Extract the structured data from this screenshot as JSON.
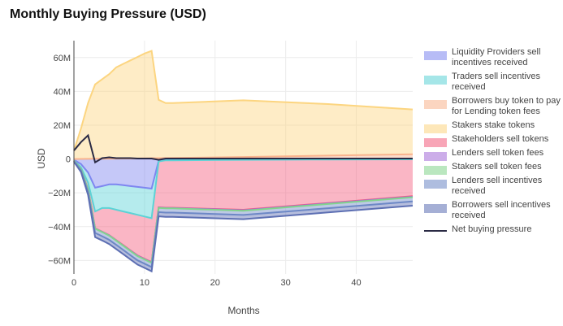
{
  "chart_data": {
    "type": "area",
    "title": "Monthly Buying Pressure (USD)",
    "xlabel": "Months",
    "ylabel": "USD",
    "xlim": [
      0,
      48
    ],
    "ylim": [
      -68000000,
      70000000
    ],
    "x_ticks": [
      0,
      10,
      20,
      30,
      40
    ],
    "y_ticks": [
      60000000,
      40000000,
      20000000,
      0,
      -20000000,
      -40000000,
      -60000000
    ],
    "y_tick_labels": [
      "60M",
      "40M",
      "20M",
      "0",
      "−20M",
      "−40M",
      "−60M"
    ],
    "x": [
      0,
      1,
      2,
      3,
      4,
      5,
      6,
      7,
      8,
      9,
      10,
      11,
      12,
      13,
      14,
      24,
      36,
      48
    ],
    "series": [
      {
        "name": "Liquidity Providers sell incentives received",
        "color": "#7e86f0",
        "stack": "neg",
        "values": [
          -0.5,
          -3,
          -8,
          -17,
          -16,
          -15,
          -15,
          -15.5,
          -16,
          -16.5,
          -17,
          -17.5,
          -1,
          -0.5,
          -0.5,
          -0.3,
          -0.2,
          -0.1
        ]
      },
      {
        "name": "Traders sell incentives received",
        "color": "#5cd3d6",
        "stack": "neg",
        "values": [
          -0.3,
          -2,
          -6,
          -14,
          -13,
          -14,
          -15,
          -15.5,
          -16,
          -16.5,
          -17,
          -17.5,
          -0.5,
          -0.3,
          -0.3,
          -0.2,
          -0.1,
          -0.1
        ]
      },
      {
        "name": "Borrowers buy token to pay for Lending token fees",
        "color": "#f9b48e",
        "stack": "pos",
        "values": [
          0,
          0.05,
          0.1,
          0.15,
          0.2,
          0.2,
          0.25,
          0.3,
          0.3,
          0.35,
          0.4,
          0.45,
          0.5,
          0.55,
          0.6,
          1.2,
          2,
          2.8
        ]
      },
      {
        "name": "Stakers stake tokens",
        "color": "#fcd580",
        "stack": "pos",
        "values": [
          5,
          18,
          33,
          44,
          47,
          50,
          54,
          56,
          58,
          60,
          62,
          63.5,
          34.5,
          32.5,
          32.5,
          33.5,
          30.5,
          26.5
        ]
      },
      {
        "name": "Stakeholders sell tokens",
        "color": "#f45d7e",
        "stack": "neg",
        "values": [
          -0.2,
          -1,
          -4,
          -10,
          -14,
          -16,
          -18,
          -20,
          -22,
          -24,
          -25,
          -26,
          -27,
          -28,
          -28,
          -29.5,
          -25.7,
          -21.8
        ]
      },
      {
        "name": "Lenders sell token fees",
        "color": "#a36bd8",
        "stack": "neg",
        "values": [
          0,
          -0.05,
          -0.1,
          -0.1,
          -0.1,
          -0.15,
          -0.15,
          -0.15,
          -0.2,
          -0.2,
          -0.2,
          -0.2,
          -0.2,
          -0.2,
          -0.2,
          -0.3,
          -0.3,
          -0.3
        ]
      },
      {
        "name": "Stakers sell token fees",
        "color": "#82d48c",
        "stack": "neg",
        "values": [
          0,
          -0.05,
          -0.1,
          -0.1,
          -0.1,
          -0.15,
          -0.15,
          -0.15,
          -0.2,
          -0.2,
          -0.2,
          -0.2,
          -0.2,
          -0.2,
          -0.2,
          -0.3,
          -0.3,
          -0.3
        ]
      },
      {
        "name": "Lenders sell incentives received",
        "color": "#6d88c6",
        "stack": "neg",
        "values": [
          -0.3,
          -0.8,
          -1.5,
          -2.5,
          -2.5,
          -2.5,
          -2.5,
          -2.5,
          -2.5,
          -2.5,
          -2.5,
          -2.5,
          -2.5,
          -2.5,
          -2.5,
          -2.5,
          -2.5,
          -2.5
        ]
      },
      {
        "name": "Borrowers sell incentives received",
        "color": "#5d6fb3",
        "stack": "neg",
        "values": [
          -0.3,
          -0.8,
          -1.5,
          -2.5,
          -2.5,
          -2.5,
          -2.5,
          -2.5,
          -2.5,
          -2.5,
          -2.5,
          -2.5,
          -2.5,
          -2.5,
          -2.5,
          -2.5,
          -2.5,
          -2.5
        ]
      },
      {
        "name": "Net buying pressure",
        "color": "#2a2a44",
        "type": "line",
        "values": [
          5,
          10,
          14,
          -2,
          0.5,
          1,
          0.5,
          0.5,
          0.5,
          0.3,
          0.3,
          0.3,
          -0.5,
          0.3,
          0.3,
          0.3,
          0.3,
          0.3
        ]
      }
    ],
    "legend_position": "right",
    "grid": true
  }
}
